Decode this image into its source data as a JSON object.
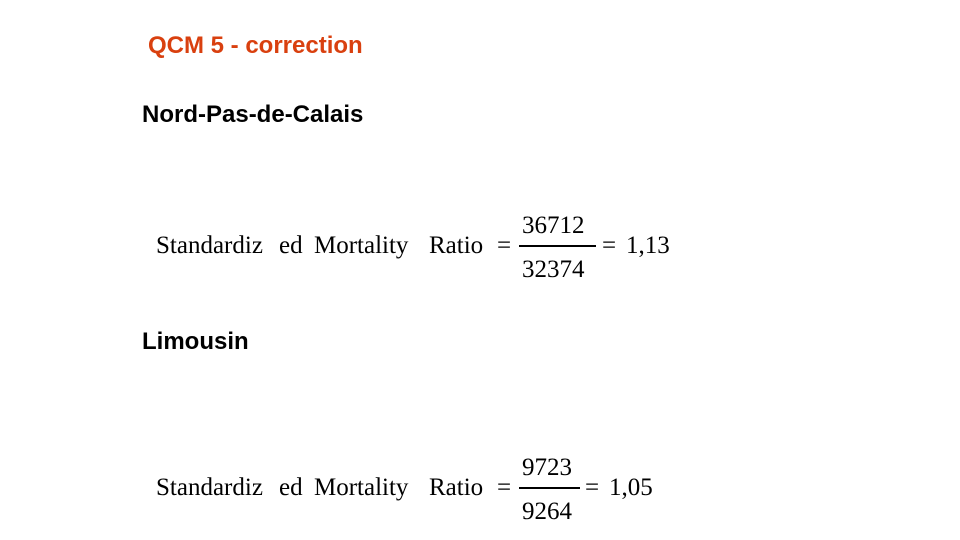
{
  "slide": {
    "title": "QCM 5 - correction",
    "title_color": "#d9400f"
  },
  "sections": [
    {
      "heading": "Nord-Pas-de-Calais",
      "formula": {
        "lhs_part1": "Standardiz",
        "lhs_part2": "ed",
        "lhs_part3": "Mortality",
        "lhs_part4": "Ratio",
        "equals": "=",
        "numerator": "36712",
        "denominator": "32374",
        "result": "1,13"
      }
    },
    {
      "heading": "Limousin",
      "formula": {
        "lhs_part1": "Standardiz",
        "lhs_part2": "ed",
        "lhs_part3": "Mortality",
        "lhs_part4": "Ratio",
        "equals": "=",
        "numerator": "9723",
        "denominator": "9264",
        "result": "1,05"
      }
    }
  ]
}
